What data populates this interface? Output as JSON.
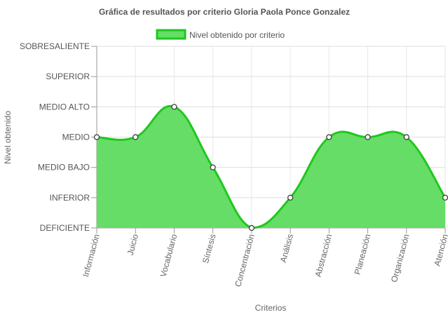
{
  "chart_data": {
    "type": "area",
    "title": "Gráfica de resultados por criterio Gloria Paola Ponce Gonzalez",
    "xlabel": "Criterios",
    "ylabel": "Nivel obtenido",
    "legend": {
      "position": "top-center"
    },
    "grid": true,
    "y_levels": [
      "DEFICIENTE",
      "INFERIOR",
      "MEDIO BAJO",
      "MEDIO",
      "MEDIO ALTO",
      "SUPERIOR",
      "SOBRESALIENTE"
    ],
    "ylim": [
      0,
      6
    ],
    "categories": [
      "Información",
      "Juicio",
      "Vocabulario",
      "Síntesis",
      "Concentración",
      "Análisis",
      "Abstracción",
      "Planeación",
      "Organización",
      "Atención"
    ],
    "series": [
      {
        "name": "Nivel obtenido por criterio",
        "values": [
          3,
          3,
          4,
          2,
          0,
          1,
          3,
          3,
          3,
          1
        ],
        "color": "#1ec81e",
        "fill": "#66dd66"
      }
    ]
  }
}
